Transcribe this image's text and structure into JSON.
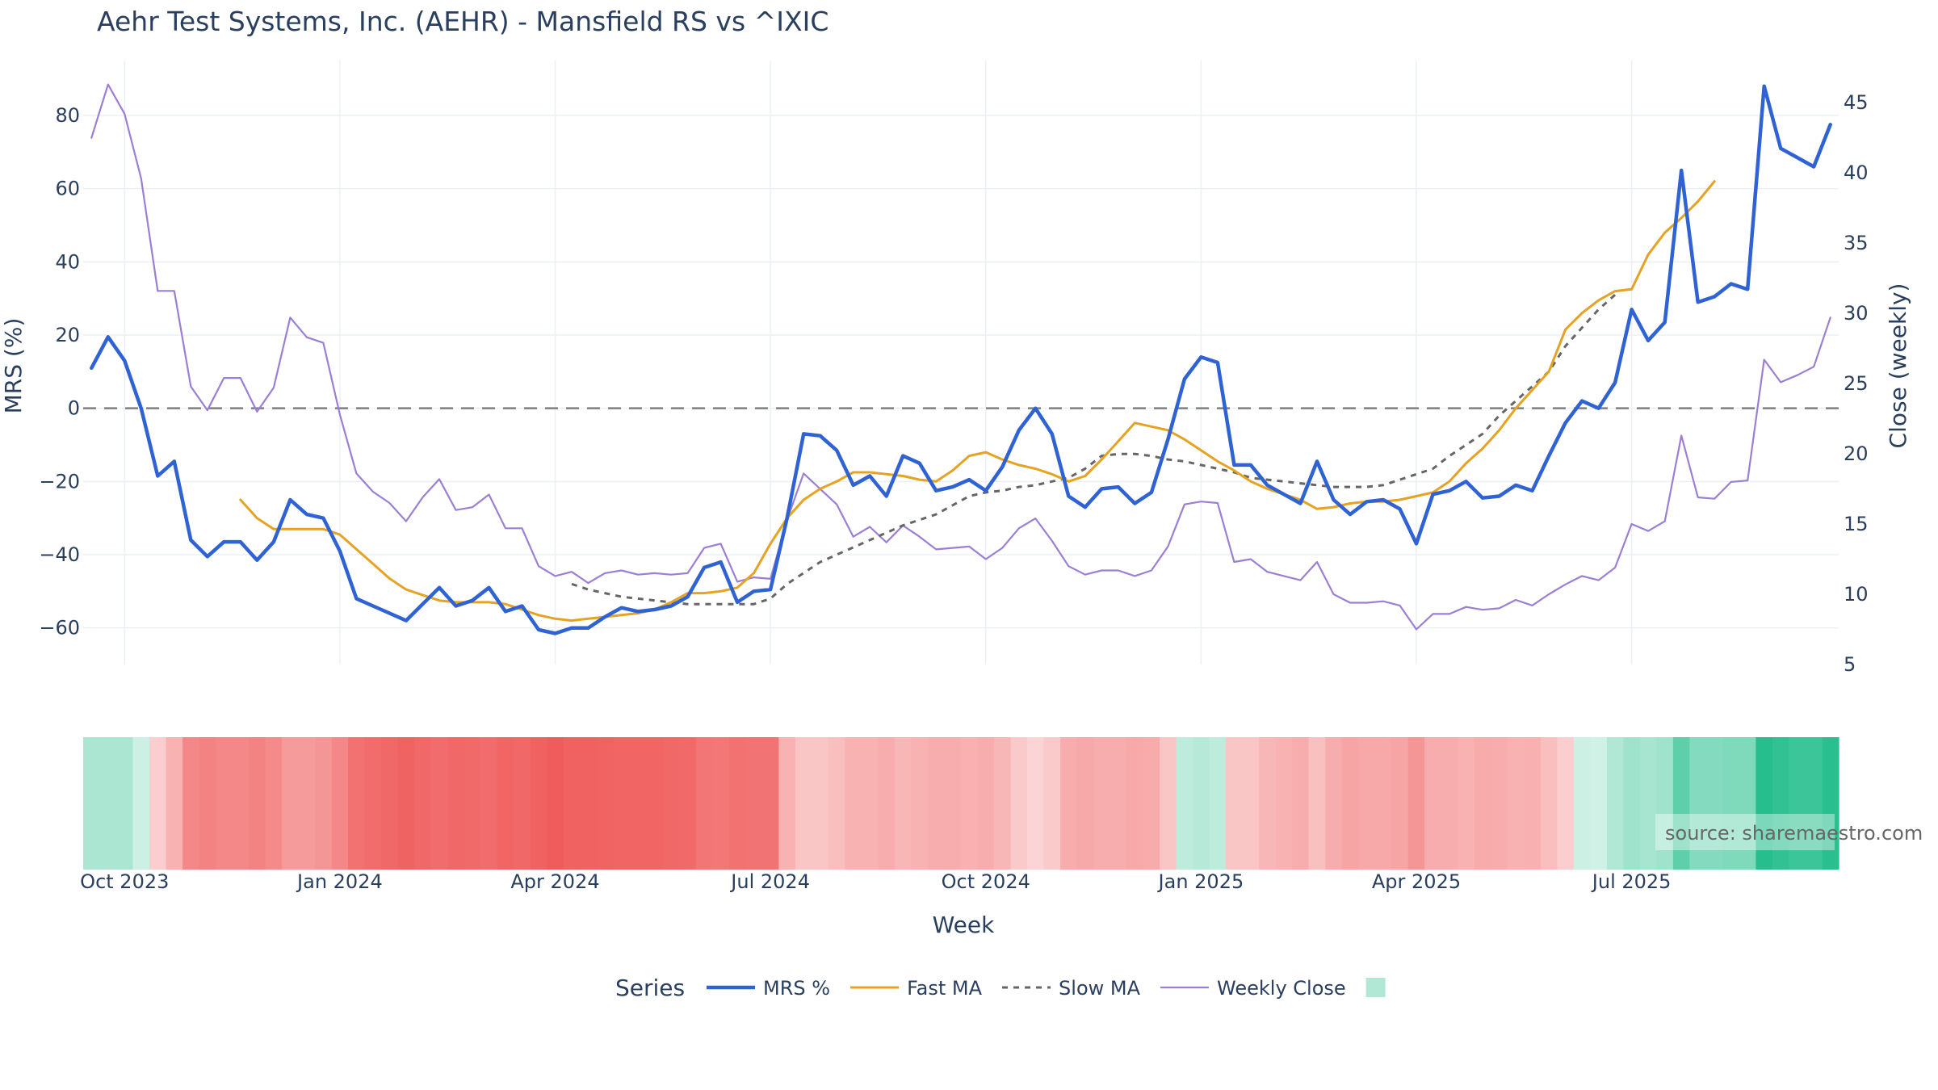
{
  "chart_data": {
    "type": "line",
    "title": "Aehr Test Systems, Inc. (AEHR) - Mansfield RS vs ^IXIC",
    "xlabel": "Week",
    "ylabel_left": "MRS (%)",
    "ylabel_right": "Close (weekly)",
    "ylim_left": [
      -70,
      95
    ],
    "ylim_right": [
      5,
      48
    ],
    "yticks_left": [
      80,
      60,
      40,
      20,
      0,
      -20,
      -40,
      -60
    ],
    "ytick_labels_left": [
      "80",
      "60",
      "40",
      "20",
      "0",
      "−20",
      "−40",
      "−60"
    ],
    "yticks_right": [
      45,
      40,
      35,
      30,
      25,
      20,
      15,
      10,
      5
    ],
    "ytick_labels_right": [
      "45",
      "40",
      "35",
      "30",
      "25",
      "20",
      "15",
      "10",
      "5"
    ],
    "x_ticks": [
      {
        "label": "Oct 2023",
        "index": 2
      },
      {
        "label": "Jan 2024",
        "index": 15
      },
      {
        "label": "Apr 2024",
        "index": 28
      },
      {
        "label": "Jul 2024",
        "index": 41
      },
      {
        "label": "Oct 2024",
        "index": 54
      },
      {
        "label": "Jan 2025",
        "index": 67
      },
      {
        "label": "Apr 2025",
        "index": 80
      },
      {
        "label": "Jul 2025",
        "index": 93
      }
    ],
    "n_weeks": 106,
    "legend_title": "Series",
    "series": [
      {
        "name": "MRS %",
        "color": "#2f63d3",
        "axis": "left",
        "start": 0,
        "values": [
          11,
          19.5,
          13,
          0,
          -18.5,
          -14.5,
          -36,
          -40.5,
          -36.5,
          -36.5,
          -41.5,
          -36.5,
          -25,
          -29,
          -30,
          -39,
          -52,
          -54,
          -56,
          -58,
          -53.5,
          -49,
          -54,
          -52.5,
          -49,
          -55.5,
          -54,
          -60.5,
          -61.5,
          -60,
          -60,
          -57,
          -54.5,
          -55.5,
          -55,
          -54,
          -51.5,
          -43.5,
          -42,
          -53,
          -50,
          -49.5,
          -30,
          -7,
          -7.5,
          -11.5,
          -21,
          -18.5,
          -24,
          -13,
          -15,
          -22.5,
          -21.5,
          -19.5,
          -22.5,
          -16,
          -6,
          0,
          -7,
          -24,
          -27,
          -22,
          -21.5,
          -26,
          -23,
          -8.5,
          8,
          14,
          12.5,
          -15.5,
          -15.5,
          -21,
          -23.5,
          -26,
          -14.5,
          -25,
          -29,
          -25.5,
          -25,
          -27.5,
          -37,
          -23.5,
          -22.5,
          -20,
          -24.5,
          -24,
          -21,
          -22.5,
          -13,
          -4,
          2,
          0,
          7,
          27,
          18.5,
          23.5,
          65,
          29,
          30.5,
          34,
          32.5,
          88,
          71,
          68.5,
          66,
          77.5
        ]
      },
      {
        "name": "Fast MA",
        "color": "#e6a323",
        "axis": "left",
        "start": 9,
        "values": [
          -25,
          -30,
          -33,
          -33,
          -33,
          -33,
          -34.5,
          -38.5,
          -42.5,
          -46.5,
          -49.5,
          -51,
          -52.5,
          -53,
          -53,
          -53,
          -53.5,
          -55,
          -56.5,
          -57.5,
          -58,
          -57.5,
          -57,
          -56.5,
          -56,
          -55,
          -53,
          -50.5,
          -50.5,
          -50,
          -49,
          -45,
          -37,
          -30,
          -25,
          -22,
          -20,
          -17.5,
          -17.5,
          -18,
          -18.5,
          -19.5,
          -20,
          -17,
          -13,
          -12,
          -14,
          -15.5,
          -16.5,
          -18,
          -20,
          -18.5,
          -14,
          -9,
          -4,
          -5,
          -6,
          -8.5,
          -11.5,
          -14.5,
          -17,
          -20,
          -22,
          -23.5,
          -25,
          -27.5,
          -27,
          -26,
          -25.5,
          -25.5,
          -25,
          -24,
          -23,
          -20,
          -15,
          -11,
          -6,
          0,
          5,
          10,
          21.5,
          26,
          29.5,
          32,
          32.5,
          42,
          48,
          52,
          56.5,
          62
        ]
      },
      {
        "name": "Slow MA",
        "color": "#666666",
        "axis": "left",
        "dash": "7 7",
        "start": 29,
        "values": [
          -48,
          -49.5,
          -50.5,
          -51.5,
          -52,
          -52.5,
          -53,
          -53.5,
          -53.5,
          -53.5,
          -53.5,
          -53.5,
          -52,
          -48,
          -45,
          -42,
          -40,
          -38,
          -36,
          -34,
          -32,
          -30.5,
          -29,
          -26.5,
          -24,
          -23,
          -22.5,
          -21.5,
          -21,
          -20,
          -19,
          -16.5,
          -13,
          -12.5,
          -12.5,
          -13,
          -14,
          -14.5,
          -15.5,
          -16.5,
          -17.5,
          -19,
          -19.5,
          -20,
          -20.5,
          -21,
          -21.5,
          -21.5,
          -21.5,
          -21,
          -19.5,
          -18,
          -16.5,
          -13,
          -10,
          -7,
          -2,
          2,
          6,
          10,
          17,
          22,
          27,
          31
        ]
      },
      {
        "name": "Weekly Close",
        "color": "#9b7fd4",
        "axis": "right",
        "start": 0,
        "values": [
          42.5,
          46.3,
          44.2,
          39.6,
          31.6,
          31.6,
          24.8,
          23.1,
          25.4,
          25.4,
          23,
          24.7,
          29.7,
          28.3,
          27.9,
          22.8,
          18.6,
          17.3,
          16.5,
          15.2,
          16.9,
          18.2,
          16,
          16.2,
          17.1,
          14.7,
          14.7,
          12,
          11.3,
          11.6,
          10.8,
          11.5,
          11.7,
          11.4,
          11.5,
          11.4,
          11.5,
          13.3,
          13.6,
          10.9,
          11.2,
          11.1,
          15.3,
          18.6,
          17.5,
          16.4,
          14.1,
          14.8,
          13.7,
          14.9,
          14.1,
          13.2,
          13.3,
          13.4,
          12.5,
          13.3,
          14.7,
          15.4,
          13.8,
          12,
          11.4,
          11.7,
          11.7,
          11.3,
          11.7,
          13.4,
          16.4,
          16.6,
          16.5,
          12.3,
          12.5,
          11.6,
          11.3,
          11,
          12.3,
          10,
          9.4,
          9.4,
          9.5,
          9.2,
          7.5,
          8.6,
          8.6,
          9.1,
          8.9,
          9,
          9.6,
          9.2,
          10,
          10.7,
          11.3,
          11,
          11.9,
          15,
          14.5,
          15.2,
          21.3,
          16.9,
          16.8,
          18,
          18.1,
          26.7,
          25.1,
          25.6,
          26.2,
          29.7
        ]
      }
    ],
    "heatmap": {
      "description": "weekly MRS colored strip",
      "values": [
        20,
        20,
        20,
        5,
        -8,
        -20,
        -38,
        -40,
        -38,
        -38,
        -40,
        -37,
        -30,
        -30,
        -32,
        -38,
        -48,
        -50,
        -52,
        -54,
        -52,
        -50,
        -52,
        -51,
        -50,
        -53,
        -52,
        -55,
        -57,
        -55,
        -55,
        -54,
        -53,
        -53,
        -53,
        -52,
        -51,
        -46,
        -45,
        -48,
        -47,
        -47,
        -20,
        -12,
        -12,
        -15,
        -20,
        -20,
        -22,
        -18,
        -20,
        -22,
        -22,
        -21,
        -22,
        -18,
        -10,
        -5,
        -10,
        -22,
        -24,
        -22,
        -22,
        -24,
        -23,
        -12,
        12,
        15,
        12,
        -12,
        -12,
        -18,
        -20,
        -22,
        -14,
        -22,
        -26,
        -24,
        -24,
        -26,
        -32,
        -22,
        -22,
        -20,
        -23,
        -22,
        -20,
        -21,
        -15,
        -8,
        5,
        4,
        18,
        25,
        22,
        25,
        55,
        38,
        38,
        40,
        40,
        80,
        75,
        70,
        70,
        78
      ]
    },
    "legend": [
      {
        "name": "MRS %",
        "color": "#2f63d3",
        "style": "solid-thick"
      },
      {
        "name": "Fast MA",
        "color": "#e6a323",
        "style": "solid"
      },
      {
        "name": "Slow MA",
        "color": "#666666",
        "style": "dotted"
      },
      {
        "name": "Weekly Close",
        "color": "#9b7fd4",
        "style": "solid-thin"
      },
      {
        "name": "",
        "color": "#b1e8d5",
        "style": "swatch"
      }
    ],
    "source": "source: sharemaestro.com"
  }
}
